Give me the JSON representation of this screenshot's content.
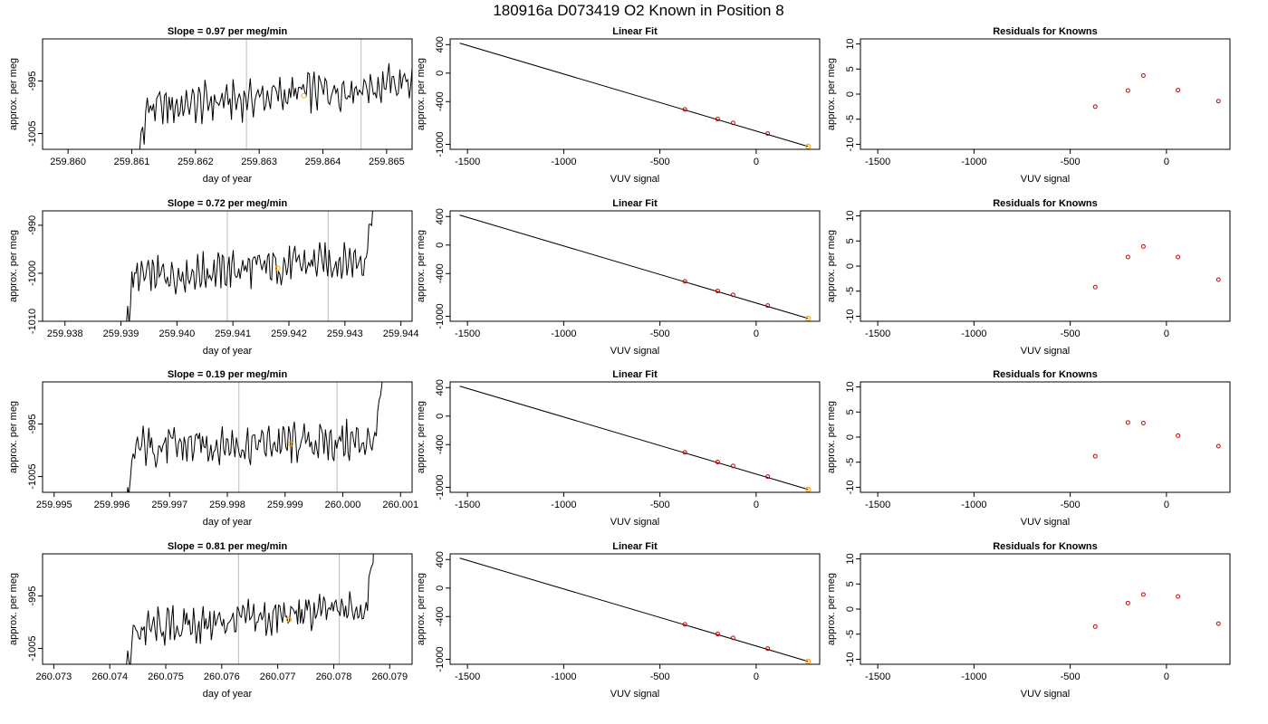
{
  "figure": {
    "title": "180916a     D073419    O2 Known in Position  8"
  },
  "chart_data": [
    {
      "type": "line",
      "title": "Slope =  0.97  per meg/min",
      "xlabel": "day of year",
      "ylabel": "approx. per meg",
      "xlim": [
        259.8596,
        259.8654
      ],
      "ylim": [
        -1008,
        -987
      ],
      "xticks": [
        "259.860",
        "259.861",
        "259.862",
        "259.863",
        "259.864",
        "259.865"
      ],
      "yticks": [
        "-1005",
        "-995"
      ],
      "vlines": [
        259.8628,
        259.8646
      ],
      "marker_x": 259.8637,
      "marker_y": -997.8
    },
    {
      "type": "line",
      "title": "Linear Fit",
      "xlabel": "VUV signal",
      "ylabel": "approx. per meg",
      "xlim": [
        -1590,
        330
      ],
      "ylim": [
        -1070,
        480
      ],
      "xticks": [
        "-1500",
        "-1000",
        "-500",
        "0"
      ],
      "yticks": [
        "400",
        "0",
        "-400",
        "-1000"
      ],
      "line": [
        [
          -1540,
          420
        ],
        [
          270,
          -1030
        ]
      ],
      "points_x": [
        -370,
        -200,
        -120,
        60
      ],
      "points_y": [
        -510,
        -645,
        -700,
        -850
      ],
      "highlight_point": [
        270,
        -1030
      ]
    },
    {
      "type": "scatter",
      "title": "Residuals for Knowns",
      "xlabel": "VUV signal",
      "ylabel": "approx. per meg",
      "xlim": [
        -1590,
        330
      ],
      "ylim": [
        -11,
        11
      ],
      "xticks": [
        "-1500",
        "-1000",
        "-500",
        "0"
      ],
      "yticks": [
        "10",
        "5",
        "0",
        "-5",
        "-10"
      ],
      "x": [
        -370,
        -200,
        -120,
        60,
        270
      ],
      "y": [
        -2.5,
        0.7,
        3.7,
        0.8,
        -1.4
      ]
    },
    {
      "type": "line",
      "title": "Slope =  0.72  per meg/min",
      "xlabel": "day of year",
      "ylabel": "approx. per meg",
      "xlim": [
        259.9376,
        259.9442
      ],
      "ylim": [
        -1010,
        -987
      ],
      "xticks": [
        "259.938",
        "259.939",
        "259.940",
        "259.941",
        "259.942",
        "259.943",
        "259.944"
      ],
      "yticks": [
        "-1010",
        "-1000",
        "-990"
      ],
      "vlines": [
        259.9409,
        259.9427
      ],
      "marker_x": 259.9418,
      "marker_y": -999
    },
    {
      "type": "line",
      "title": "Linear Fit",
      "xlabel": "VUV signal",
      "ylabel": "approx. per meg",
      "xlim": [
        -1590,
        330
      ],
      "ylim": [
        -1070,
        480
      ],
      "xticks": [
        "-1500",
        "-1000",
        "-500",
        "0"
      ],
      "yticks": [
        "400",
        "0",
        "-400",
        "-1000"
      ],
      "line": [
        [
          -1540,
          420
        ],
        [
          270,
          -1030
        ]
      ],
      "points_x": [
        -370,
        -200,
        -120,
        60
      ],
      "points_y": [
        -510,
        -645,
        -700,
        -850
      ],
      "highlight_point": [
        270,
        -1030
      ]
    },
    {
      "type": "scatter",
      "title": "Residuals for Knowns",
      "xlabel": "VUV signal",
      "ylabel": "approx. per meg",
      "xlim": [
        -1590,
        330
      ],
      "ylim": [
        -11,
        11
      ],
      "xticks": [
        "-1500",
        "-1000",
        "-500",
        "0"
      ],
      "yticks": [
        "10",
        "5",
        "0",
        "-5",
        "-10"
      ],
      "x": [
        -370,
        -200,
        -120,
        60,
        270
      ],
      "y": [
        -4.2,
        1.8,
        3.9,
        1.8,
        -2.7
      ]
    },
    {
      "type": "line",
      "title": "Slope =  0.19  per meg/min",
      "xlabel": "day of year",
      "ylabel": "approx. per meg",
      "xlim": [
        259.9948,
        260.0012
      ],
      "ylim": [
        -1008,
        -987
      ],
      "xticks": [
        "259.995",
        "259.996",
        "259.997",
        "259.998",
        "259.999",
        "260.000",
        "260.001"
      ],
      "yticks": [
        "-1005",
        "-995"
      ],
      "vlines": [
        259.9982,
        259.9999
      ],
      "marker_x": 259.9991,
      "marker_y": -998.8
    },
    {
      "type": "line",
      "title": "Linear Fit",
      "xlabel": "VUV signal",
      "ylabel": "approx. per meg",
      "xlim": [
        -1590,
        330
      ],
      "ylim": [
        -1070,
        480
      ],
      "xticks": [
        "-1500",
        "-1000",
        "-500",
        "0"
      ],
      "yticks": [
        "400",
        "0",
        "-400",
        "-1000"
      ],
      "line": [
        [
          -1540,
          420
        ],
        [
          270,
          -1030
        ]
      ],
      "points_x": [
        -370,
        -200,
        -120,
        60
      ],
      "points_y": [
        -510,
        -645,
        -700,
        -850
      ],
      "highlight_point": [
        270,
        -1030
      ]
    },
    {
      "type": "scatter",
      "title": "Residuals for Knowns",
      "xlabel": "VUV signal",
      "ylabel": "approx. per meg",
      "xlim": [
        -1590,
        330
      ],
      "ylim": [
        -11,
        11
      ],
      "xticks": [
        "-1500",
        "-1000",
        "-500",
        "0"
      ],
      "yticks": [
        "10",
        "5",
        "0",
        "-5",
        "-10"
      ],
      "x": [
        -370,
        -200,
        -120,
        60,
        270
      ],
      "y": [
        -3.8,
        2.9,
        2.8,
        0.3,
        -1.8
      ]
    },
    {
      "type": "line",
      "title": "Slope =  0.81  per meg/min",
      "xlabel": "day of year",
      "ylabel": "approx. per meg",
      "xlim": [
        260.0728,
        260.0794
      ],
      "ylim": [
        -1008,
        -987
      ],
      "xticks": [
        "260.073",
        "260.074",
        "260.075",
        "260.076",
        "260.077",
        "260.078",
        "260.079"
      ],
      "yticks": [
        "-1005",
        "-995"
      ],
      "vlines": [
        260.0763,
        260.0781
      ],
      "marker_x": 260.0772,
      "marker_y": -999.5
    },
    {
      "type": "line",
      "title": "Linear Fit",
      "xlabel": "VUV signal",
      "ylabel": "approx. per meg",
      "xlim": [
        -1590,
        330
      ],
      "ylim": [
        -1070,
        480
      ],
      "xticks": [
        "-1500",
        "-1000",
        "-500",
        "0"
      ],
      "yticks": [
        "400",
        "0",
        "-400",
        "-1000"
      ],
      "line": [
        [
          -1540,
          420
        ],
        [
          270,
          -1030
        ]
      ],
      "points_x": [
        -370,
        -200,
        -120,
        60
      ],
      "points_y": [
        -510,
        -645,
        -700,
        -850
      ],
      "highlight_point": [
        270,
        -1030
      ]
    },
    {
      "type": "scatter",
      "title": "Residuals for Knowns",
      "xlabel": "VUV signal",
      "ylabel": "approx. per meg",
      "xlim": [
        -1590,
        330
      ],
      "ylim": [
        -11,
        11
      ],
      "xticks": [
        "-1500",
        "-1000",
        "-500",
        "0"
      ],
      "yticks": [
        "10",
        "5",
        "0",
        "-5",
        "-10"
      ],
      "x": [
        -370,
        -200,
        -120,
        60,
        270
      ],
      "y": [
        -3.5,
        1.2,
        2.9,
        2.5,
        -2.9
      ]
    }
  ],
  "colors": {
    "line": "#000000",
    "marker": "#ffa500",
    "residual": "#cc0000",
    "vline": "#bbbbbb",
    "frame": "#000000"
  }
}
